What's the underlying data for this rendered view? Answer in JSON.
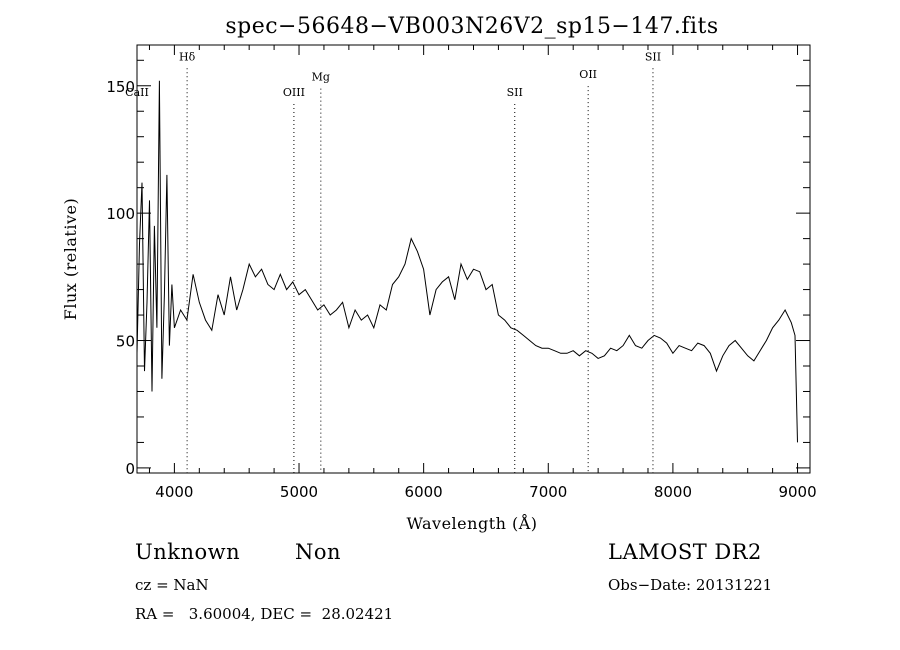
{
  "chart_data": {
    "type": "line",
    "title": "spec−56648−VB003N26V2_sp15−147.fits",
    "xlabel": "Wavelength (Å)",
    "ylabel": "Flux (relative)",
    "xlim": [
      3700,
      9100
    ],
    "ylim": [
      -2,
      166
    ],
    "grid": false,
    "x_ticks": [
      4000,
      5000,
      6000,
      7000,
      8000,
      9000
    ],
    "y_ticks": [
      0,
      50,
      100,
      150
    ],
    "line_markers": [
      {
        "label": "CaII",
        "x": 3700,
        "y": 146
      },
      {
        "label": "Hδ",
        "x": 4102,
        "y": 160
      },
      {
        "label": "OIII",
        "x": 4959,
        "y": 146
      },
      {
        "label": "Mg",
        "x": 5175,
        "y": 152
      },
      {
        "label": "SII",
        "x": 6731,
        "y": 146
      },
      {
        "label": "OII",
        "x": 7320,
        "y": 153
      },
      {
        "label": "SII",
        "x": 7840,
        "y": 160
      }
    ],
    "series": [
      {
        "x": [
          3700,
          3720,
          3740,
          3760,
          3780,
          3800,
          3820,
          3840,
          3860,
          3880,
          3900,
          3920,
          3940,
          3960,
          3980,
          4000,
          4050,
          4100,
          4150,
          4200,
          4250,
          4300,
          4350,
          4400,
          4450,
          4500,
          4550,
          4600,
          4650,
          4700,
          4750,
          4800,
          4850,
          4900,
          4950,
          5000,
          5050,
          5100,
          5150,
          5200,
          5250,
          5300,
          5350,
          5400,
          5450,
          5500,
          5550,
          5600,
          5650,
          5700,
          5750,
          5800,
          5850,
          5900,
          5950,
          6000,
          6050,
          6100,
          6150,
          6200,
          6250,
          6300,
          6350,
          6400,
          6450,
          6500,
          6550,
          6600,
          6650,
          6700,
          6750,
          6800,
          6850,
          6900,
          6950,
          7000,
          7050,
          7100,
          7150,
          7200,
          7250,
          7300,
          7350,
          7400,
          7450,
          7500,
          7550,
          7600,
          7650,
          7700,
          7750,
          7800,
          7850,
          7900,
          7950,
          8000,
          8050,
          8100,
          8150,
          8200,
          8250,
          8300,
          8350,
          8400,
          8450,
          8500,
          8550,
          8600,
          8650,
          8700,
          8750,
          8800,
          8850,
          8900,
          8950,
          8980,
          9000
        ],
        "y": [
          45,
          88,
          112,
          38,
          65,
          105,
          30,
          95,
          55,
          152,
          35,
          68,
          115,
          48,
          72,
          55,
          62,
          58,
          76,
          65,
          58,
          54,
          68,
          60,
          75,
          62,
          70,
          80,
          75,
          78,
          72,
          70,
          76,
          70,
          73,
          68,
          70,
          66,
          62,
          64,
          60,
          62,
          65,
          55,
          62,
          58,
          60,
          55,
          64,
          62,
          72,
          75,
          80,
          90,
          85,
          78,
          60,
          70,
          73,
          75,
          66,
          80,
          74,
          78,
          77,
          70,
          72,
          60,
          58,
          55,
          54,
          52,
          50,
          48,
          47,
          47,
          46,
          45,
          45,
          46,
          44,
          46,
          45,
          43,
          44,
          47,
          46,
          48,
          52,
          48,
          47,
          50,
          52,
          51,
          49,
          45,
          48,
          47,
          46,
          49,
          48,
          45,
          38,
          44,
          48,
          50,
          47,
          44,
          42,
          46,
          50,
          55,
          58,
          62,
          57,
          52,
          10
        ]
      }
    ],
    "annotations": {
      "object_class": "Unknown",
      "subclass": "Non",
      "survey": "LAMOST DR2",
      "cz": "cz = NaN",
      "obs_date": "Obs−Date: 20131221",
      "coords": "RA =   3.60004, DEC =  28.02421"
    }
  }
}
